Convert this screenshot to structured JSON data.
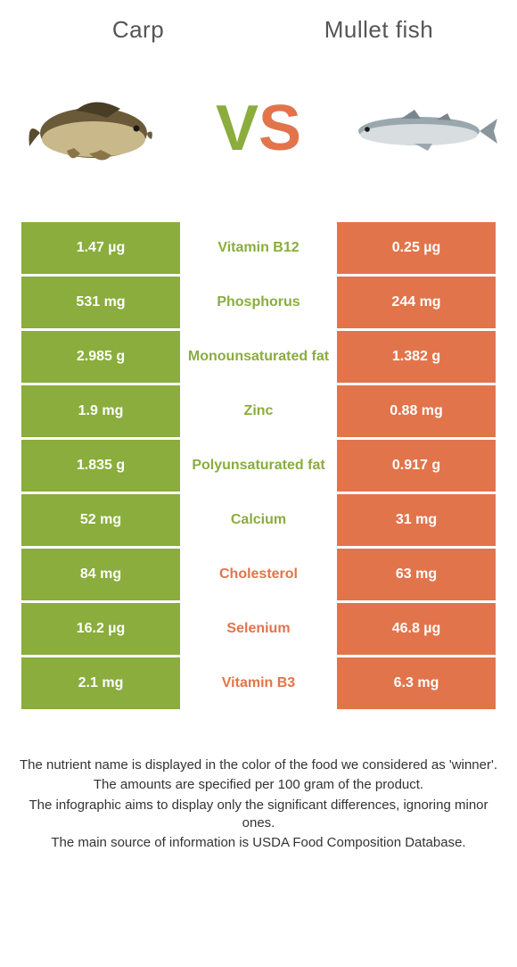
{
  "colors": {
    "left": "#8aad3d",
    "right": "#e2744b",
    "text_dark": "#555555"
  },
  "header": {
    "left_title": "Carp",
    "right_title": "Mullet fish"
  },
  "hero": {
    "vs_v": "V",
    "vs_s": "S"
  },
  "rows": [
    {
      "left": "1.47 µg",
      "mid": "Vitamin B12",
      "right": "0.25 µg",
      "winner": "left"
    },
    {
      "left": "531 mg",
      "mid": "Phosphorus",
      "right": "244 mg",
      "winner": "left"
    },
    {
      "left": "2.985 g",
      "mid": "Monounsaturated fat",
      "right": "1.382 g",
      "winner": "left"
    },
    {
      "left": "1.9 mg",
      "mid": "Zinc",
      "right": "0.88 mg",
      "winner": "left"
    },
    {
      "left": "1.835 g",
      "mid": "Polyunsaturated fat",
      "right": "0.917 g",
      "winner": "left"
    },
    {
      "left": "52 mg",
      "mid": "Calcium",
      "right": "31 mg",
      "winner": "left"
    },
    {
      "left": "84 mg",
      "mid": "Cholesterol",
      "right": "63 mg",
      "winner": "right"
    },
    {
      "left": "16.2 µg",
      "mid": "Selenium",
      "right": "46.8 µg",
      "winner": "right"
    },
    {
      "left": "2.1 mg",
      "mid": "Vitamin B3",
      "right": "6.3 mg",
      "winner": "right"
    }
  ],
  "footnotes": [
    "The nutrient name is displayed in the color of the food we considered as 'winner'.",
    "The amounts are specified per 100 gram of the product.",
    "The infographic aims to display only the significant differences, ignoring minor ones.",
    "The main source of information is USDA Food Composition Database."
  ]
}
